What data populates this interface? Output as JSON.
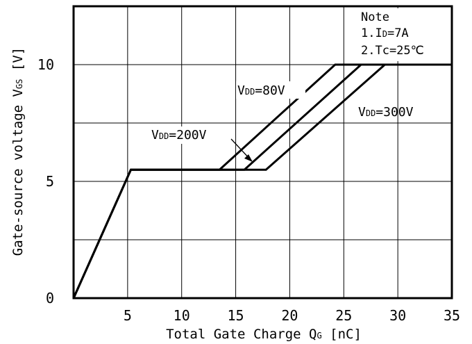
{
  "chart_data": {
    "type": "line",
    "xlabel": "Total Gate Charge Qg [nC]",
    "ylabel": "Gate-source voltage VGS [V]",
    "xlim": [
      0,
      35
    ],
    "ylim": [
      0,
      12.5
    ],
    "grid": true,
    "x_ticks": [
      5,
      10,
      15,
      20,
      25,
      30,
      35
    ],
    "y_ticks": [
      0,
      5,
      10
    ],
    "series": [
      {
        "name": "VDD=80V",
        "x": [
          0,
          5.3,
          13.5,
          24.2,
          35
        ],
        "y": [
          0,
          5.5,
          5.5,
          10,
          10
        ]
      },
      {
        "name": "VDD=200V",
        "x": [
          0,
          5.3,
          15.8,
          26.6,
          35
        ],
        "y": [
          0,
          5.5,
          5.5,
          10,
          10
        ]
      },
      {
        "name": "VDD=300V",
        "x": [
          0,
          5.3,
          17.8,
          28.8,
          35
        ],
        "y": [
          0,
          5.5,
          5.5,
          10,
          10
        ]
      }
    ],
    "annotations": {
      "vdd80": {
        "prefix": "V",
        "sub": "DD",
        "suffix": "=80V"
      },
      "vdd200": {
        "prefix": "V",
        "sub": "DD",
        "suffix": "=200V"
      },
      "vdd300": {
        "prefix": "V",
        "sub": "DD",
        "suffix": "=300V"
      }
    },
    "note": {
      "title": "Note",
      "line1": {
        "prefix": "1.I",
        "sub": "D",
        "suffix": "=7A"
      },
      "line2": "2.Tc=25℃"
    },
    "axis_text": {
      "x_main": "Total Gate Charge Q",
      "x_sub": "G",
      "x_unit": " [nC]",
      "y_main": "Gate-source voltage V",
      "y_sub": "GS",
      "y_unit": " [V]"
    }
  }
}
